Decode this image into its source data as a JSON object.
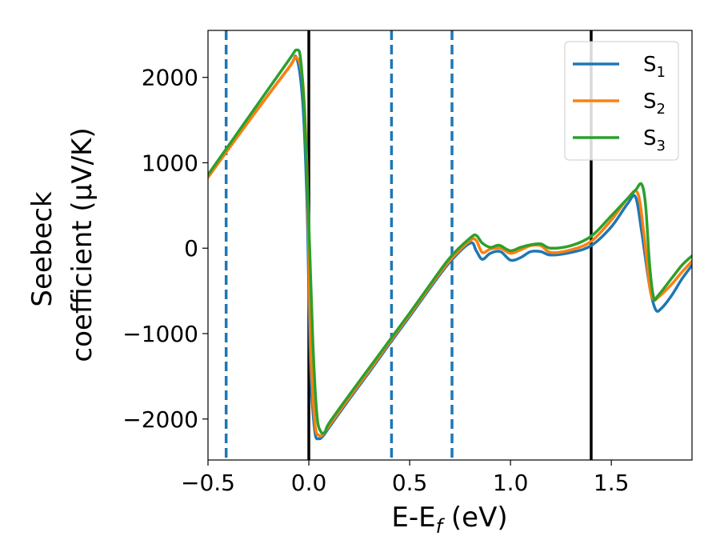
{
  "chart_data": {
    "type": "line",
    "xlabel": "E-E",
    "xlabel_sub": "f",
    "xlabel_unit": " (eV)",
    "ylabel_line1": "Seebeck",
    "ylabel_line2": "coefficient  (μV/K)",
    "xlim": [
      -0.5,
      1.9
    ],
    "ylim": [
      -2480,
      2550
    ],
    "xticks": [
      -0.5,
      0.0,
      0.5,
      1.0,
      1.5
    ],
    "xtick_labels": [
      "−0.5",
      "0.0",
      "0.5",
      "1.0",
      "1.5"
    ],
    "yticks": [
      2000,
      1000,
      0,
      -1000,
      -2000
    ],
    "ytick_labels": [
      "2000",
      "1000",
      "0",
      "−1000",
      "−2000"
    ],
    "legend_position": "top-right",
    "series": [
      {
        "name": "S",
        "sub": "1",
        "color": "#1f77b4",
        "x": [
          -0.5,
          -0.3,
          -0.1,
          -0.06,
          -0.03,
          -0.01,
          0.0,
          0.01,
          0.03,
          0.05,
          0.07,
          0.1,
          0.2,
          0.3,
          0.4,
          0.5,
          0.6,
          0.7,
          0.8,
          0.83,
          0.86,
          0.9,
          0.95,
          1.0,
          1.05,
          1.1,
          1.15,
          1.2,
          1.3,
          1.4,
          1.5,
          1.58,
          1.62,
          1.65,
          1.69,
          1.72,
          1.75,
          1.8,
          1.85,
          1.9
        ],
        "y": [
          830,
          1480,
          2110,
          2220,
          1700,
          600,
          -500,
          -1500,
          -2150,
          -2230,
          -2200,
          -2100,
          -1770,
          -1450,
          -1120,
          -800,
          -470,
          -160,
          60,
          -30,
          -130,
          -60,
          -40,
          -140,
          -110,
          -40,
          -40,
          -80,
          -50,
          30,
          250,
          520,
          600,
          200,
          -450,
          -720,
          -700,
          -550,
          -360,
          -200
        ]
      },
      {
        "name": "S",
        "sub": "2",
        "color": "#ff7f0e",
        "x": [
          -0.5,
          -0.3,
          -0.1,
          -0.06,
          -0.03,
          -0.01,
          0.0,
          0.01,
          0.03,
          0.05,
          0.07,
          0.1,
          0.2,
          0.3,
          0.4,
          0.5,
          0.6,
          0.7,
          0.8,
          0.83,
          0.86,
          0.9,
          0.95,
          1.0,
          1.05,
          1.1,
          1.15,
          1.2,
          1.3,
          1.4,
          1.5,
          1.58,
          1.63,
          1.66,
          1.69,
          1.71,
          1.74,
          1.8,
          1.85,
          1.9
        ],
        "y": [
          830,
          1480,
          2110,
          2230,
          1950,
          1000,
          -100,
          -1200,
          -2050,
          -2190,
          -2180,
          -2080,
          -1750,
          -1430,
          -1100,
          -780,
          -450,
          -140,
          90,
          90,
          -50,
          -10,
          0,
          -60,
          -20,
          30,
          30,
          -50,
          -20,
          80,
          330,
          580,
          650,
          200,
          -450,
          -600,
          -560,
          -420,
          -280,
          -150
        ]
      },
      {
        "name": "S",
        "sub": "3",
        "color": "#2ca02c",
        "x": [
          -0.5,
          -0.3,
          -0.1,
          -0.06,
          -0.04,
          -0.02,
          0.0,
          0.02,
          0.04,
          0.06,
          0.08,
          0.1,
          0.2,
          0.3,
          0.4,
          0.5,
          0.6,
          0.7,
          0.8,
          0.83,
          0.86,
          0.9,
          0.93,
          0.95,
          1.0,
          1.05,
          1.1,
          1.15,
          1.2,
          1.3,
          1.4,
          1.5,
          1.58,
          1.62,
          1.65,
          1.67,
          1.69,
          1.71,
          1.73,
          1.8,
          1.85,
          1.9
        ],
        "y": [
          860,
          1530,
          2200,
          2320,
          2200,
          1500,
          300,
          -1100,
          -1950,
          -2150,
          -2150,
          -2050,
          -1720,
          -1400,
          -1080,
          -760,
          -430,
          -110,
          120,
          150,
          60,
          10,
          30,
          30,
          -30,
          10,
          40,
          50,
          0,
          30,
          140,
          380,
          580,
          680,
          750,
          500,
          -200,
          -580,
          -560,
          -350,
          -200,
          -90
        ]
      }
    ],
    "vlines_solid": [
      0.0,
      1.4
    ],
    "vlines_dashed": [
      -0.41,
      0.41,
      0.71
    ],
    "colors": {
      "solid_vline": "#000000",
      "dashed_vline": "#1f77b4"
    }
  }
}
